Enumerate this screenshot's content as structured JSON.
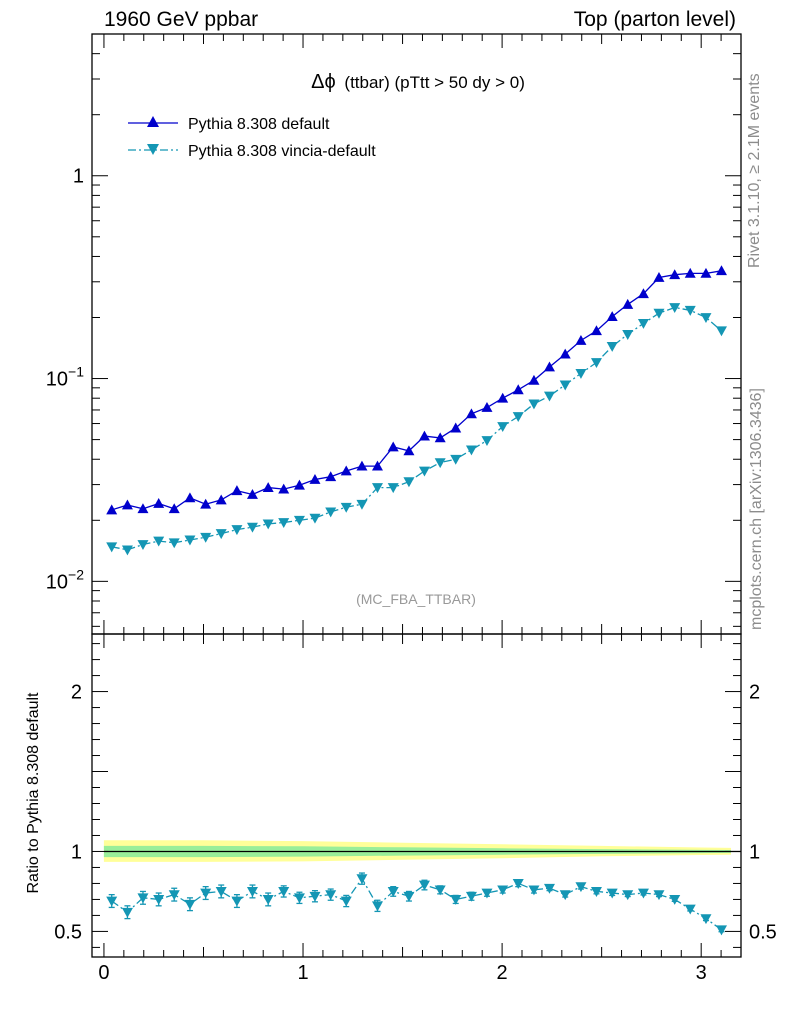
{
  "header": {
    "left": "1960 GeV ppbar",
    "right": "Top (parton level)"
  },
  "side_labels": {
    "rivet": "Rivet 3.1.10, ≥ 2.1M events",
    "mcplots": "mcplots.cern.ch [arXiv:1306.3436]"
  },
  "plot_title": {
    "symbol": "Δϕ",
    "rest": "(ttbar) (pTtt > 50 dy > 0)"
  },
  "analysis_tag": "(MC_FBA_TTBAR)",
  "ratio_ylabel": "Ratio to Pythia 8.308 default",
  "colors": {
    "default": "#0000cc",
    "vincia": "#1496b4",
    "band_outer": "#ffff99",
    "band_inner": "#99ee99"
  },
  "chart_data": [
    {
      "type": "line",
      "yscale": "log",
      "ylim": [
        0.0055,
        5.0
      ],
      "xlim": [
        -0.06,
        3.2
      ],
      "ytick_labels": [
        "10^-2",
        "10^-1",
        "1"
      ],
      "series": [
        {
          "name": "Pythia 8.308 default",
          "marker": "triangle-up",
          "linestyle": "solid",
          "color": "#0000cc",
          "x": [
            0.039,
            0.118,
            0.196,
            0.275,
            0.353,
            0.432,
            0.511,
            0.589,
            0.668,
            0.746,
            0.825,
            0.903,
            0.982,
            1.06,
            1.139,
            1.217,
            1.296,
            1.374,
            1.453,
            1.532,
            1.61,
            1.689,
            1.767,
            1.846,
            1.924,
            2.003,
            2.081,
            2.16,
            2.238,
            2.317,
            2.396,
            2.474,
            2.553,
            2.631,
            2.71,
            2.788,
            2.867,
            2.945,
            3.024,
            3.102
          ],
          "values": [
            0.0225,
            0.0238,
            0.0228,
            0.0242,
            0.0228,
            0.0258,
            0.024,
            0.0252,
            0.028,
            0.0268,
            0.029,
            0.0285,
            0.0298,
            0.0318,
            0.0328,
            0.035,
            0.037,
            0.037,
            0.046,
            0.044,
            0.052,
            0.051,
            0.057,
            0.067,
            0.072,
            0.08,
            0.088,
            0.098,
            0.114,
            0.132,
            0.154,
            0.172,
            0.202,
            0.232,
            0.262,
            0.315,
            0.325,
            0.33,
            0.33,
            0.34
          ]
        },
        {
          "name": "Pythia 8.308 vincia-default",
          "marker": "triangle-down",
          "linestyle": "dash-dot",
          "color": "#1496b4",
          "x": [
            0.039,
            0.118,
            0.196,
            0.275,
            0.353,
            0.432,
            0.511,
            0.589,
            0.668,
            0.746,
            0.825,
            0.903,
            0.982,
            1.06,
            1.139,
            1.217,
            1.296,
            1.374,
            1.453,
            1.532,
            1.61,
            1.689,
            1.767,
            1.846,
            1.924,
            2.003,
            2.081,
            2.16,
            2.238,
            2.317,
            2.396,
            2.474,
            2.553,
            2.631,
            2.71,
            2.788,
            2.867,
            2.945,
            3.024,
            3.102
          ],
          "values": [
            0.0148,
            0.0143,
            0.0152,
            0.0158,
            0.0155,
            0.016,
            0.0165,
            0.0172,
            0.018,
            0.0185,
            0.0192,
            0.0195,
            0.02,
            0.0205,
            0.022,
            0.0232,
            0.024,
            0.029,
            0.029,
            0.031,
            0.035,
            0.0385,
            0.04,
            0.0445,
            0.0495,
            0.058,
            0.065,
            0.075,
            0.082,
            0.093,
            0.106,
            0.12,
            0.144,
            0.165,
            0.187,
            0.21,
            0.224,
            0.217,
            0.2,
            0.172
          ]
        }
      ]
    },
    {
      "type": "line",
      "ylabel": "Ratio to Pythia 8.308 default",
      "ylim": [
        0.34,
        2.36
      ],
      "xlim": [
        -0.06,
        3.2
      ],
      "yticks": [
        0.5,
        1,
        2
      ],
      "xticks": [
        0,
        1,
        2,
        3
      ],
      "reference_line": 1,
      "band": {
        "x": [
          0.0,
          0.5,
          1.0,
          1.5,
          2.0,
          2.5,
          3.0,
          3.15
        ],
        "outer_lo": [
          0.935,
          0.935,
          0.938,
          0.948,
          0.958,
          0.97,
          0.978,
          0.98
        ],
        "outer_hi": [
          1.07,
          1.07,
          1.065,
          1.055,
          1.045,
          1.035,
          1.025,
          1.022
        ],
        "inner_lo": [
          0.965,
          0.965,
          0.968,
          0.974,
          0.98,
          0.985,
          0.99,
          0.991
        ],
        "inner_hi": [
          1.035,
          1.035,
          1.032,
          1.026,
          1.02,
          1.015,
          1.01,
          1.009
        ]
      },
      "series": [
        {
          "name": "Pythia 8.308 vincia-default",
          "marker": "triangle-down",
          "linestyle": "dash-dot",
          "color": "#1496b4",
          "x": [
            0.039,
            0.118,
            0.196,
            0.275,
            0.353,
            0.432,
            0.511,
            0.589,
            0.668,
            0.746,
            0.825,
            0.903,
            0.982,
            1.06,
            1.139,
            1.217,
            1.296,
            1.374,
            1.453,
            1.532,
            1.61,
            1.689,
            1.767,
            1.846,
            1.924,
            2.003,
            2.081,
            2.16,
            2.238,
            2.317,
            2.396,
            2.474,
            2.553,
            2.631,
            2.71,
            2.788,
            2.867,
            2.945,
            3.024,
            3.102
          ],
          "values": [
            0.69,
            0.62,
            0.71,
            0.7,
            0.73,
            0.67,
            0.74,
            0.75,
            0.69,
            0.75,
            0.7,
            0.75,
            0.71,
            0.72,
            0.73,
            0.69,
            0.83,
            0.66,
            0.75,
            0.72,
            0.79,
            0.76,
            0.7,
            0.72,
            0.74,
            0.76,
            0.8,
            0.76,
            0.77,
            0.73,
            0.78,
            0.75,
            0.74,
            0.73,
            0.74,
            0.73,
            0.7,
            0.64,
            0.58,
            0.51
          ],
          "errors": [
            0.04,
            0.04,
            0.04,
            0.04,
            0.04,
            0.04,
            0.04,
            0.04,
            0.04,
            0.04,
            0.04,
            0.035,
            0.035,
            0.035,
            0.035,
            0.035,
            0.035,
            0.035,
            0.03,
            0.03,
            0.03,
            0.025,
            0.025,
            0.025,
            0.02,
            0.02,
            0.02,
            0.02,
            0.015,
            0.015,
            0.015,
            0.015,
            0.015,
            0.012,
            0.012,
            0.012,
            0.012,
            0.012,
            0.012,
            0.012
          ]
        }
      ]
    }
  ]
}
